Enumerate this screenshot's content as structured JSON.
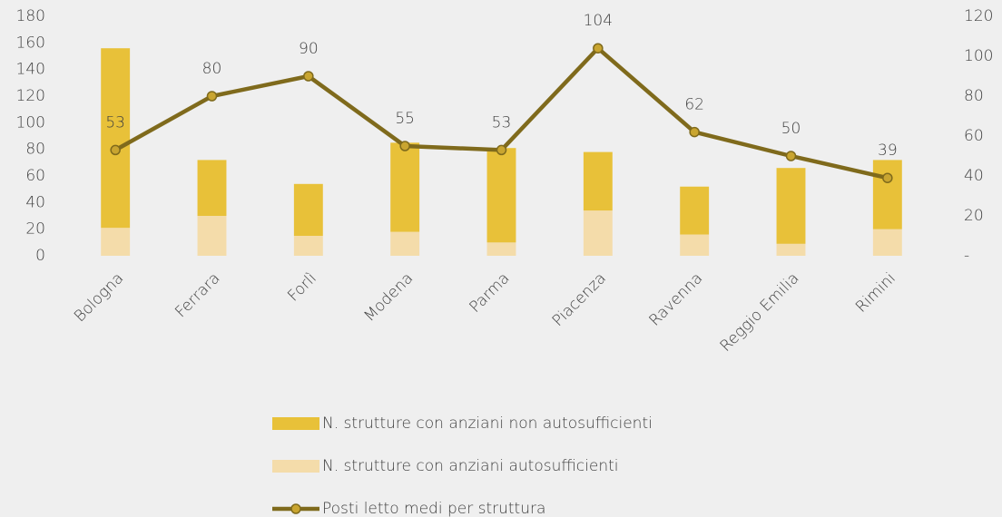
{
  "chart_data": {
    "type": "bar-line",
    "categories": [
      "Bologna",
      "Ferrara",
      "Forlì",
      "Modena",
      "Parma",
      "Piacenza",
      "Ravenna",
      "Reggio Emilia",
      "Rimini"
    ],
    "series": [
      {
        "name": "N. strutture con anziani non autosufficienti",
        "type": "bar",
        "color": "#e8c139",
        "values": [
          135,
          42,
          39,
          67,
          71,
          44,
          36,
          57,
          52
        ]
      },
      {
        "name": "N. strutture con anziani autosufficienti",
        "type": "bar",
        "color": "#f4dcaa",
        "values": [
          21,
          30,
          15,
          18,
          10,
          34,
          16,
          9,
          20
        ]
      },
      {
        "name": "Posti letto medi per struttura",
        "type": "line",
        "axis": "y2",
        "color": "#7f6a1c",
        "marker_color": "#c9a530",
        "values": [
          53,
          80,
          90,
          55,
          53,
          104,
          62,
          50,
          39
        ]
      }
    ],
    "stacked": true,
    "ylim": [
      0,
      180
    ],
    "yticks": [
      0,
      20,
      40,
      60,
      80,
      100,
      120,
      140,
      160,
      180
    ],
    "y2lim": [
      0,
      120
    ],
    "y2ticks": [
      {
        "value": 0,
        "label": "-"
      },
      20,
      40,
      60,
      80,
      100,
      120
    ],
    "legend": "bottom"
  }
}
